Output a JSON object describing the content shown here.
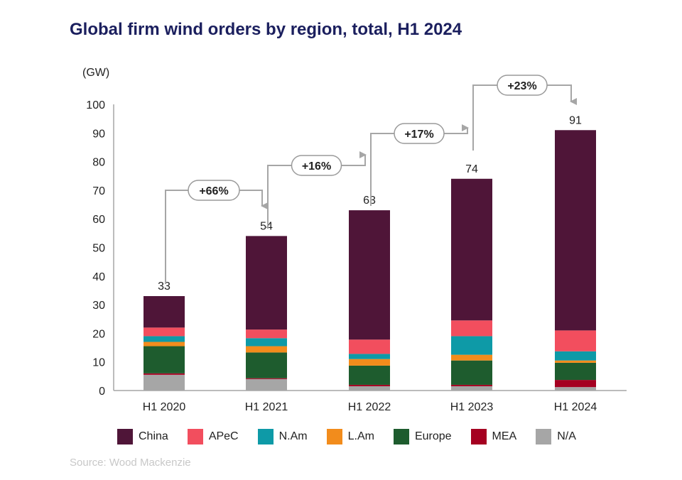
{
  "chart_data": {
    "type": "bar",
    "stacked": true,
    "title": "Global firm wind orders by region, total, H1 2024",
    "ylabel": "(GW)",
    "ylim": [
      0,
      100
    ],
    "yticks": [
      "0",
      "10",
      "20",
      "30",
      "40",
      "50",
      "60",
      "70",
      "80",
      "90",
      "100"
    ],
    "categories": [
      "H1 2020",
      "H1 2021",
      "H1 2022",
      "H1 2023",
      "H1 2024"
    ],
    "totals": [
      "33",
      "54",
      "63",
      "74",
      "91"
    ],
    "growth": [
      "+66%",
      "+16%",
      "+17%",
      "+23%"
    ],
    "series": [
      {
        "name": "N/A",
        "color": "#a6a6a6",
        "values": [
          5.5,
          4.0,
          1.5,
          1.5,
          1.2
        ]
      },
      {
        "name": "MEA",
        "color": "#a50021",
        "values": [
          0.5,
          0.3,
          0.5,
          0.5,
          2.5
        ]
      },
      {
        "name": "Europe",
        "color": "#1e5c2e",
        "values": [
          9.5,
          9.0,
          6.7,
          8.5,
          6.0
        ]
      },
      {
        "name": "L.Am",
        "color": "#f28c1c",
        "values": [
          1.5,
          2.2,
          2.3,
          2.0,
          0.8
        ]
      },
      {
        "name": "N.Am",
        "color": "#0e9aa7",
        "values": [
          2.0,
          2.8,
          1.8,
          6.5,
          3.2
        ]
      },
      {
        "name": "APeC",
        "color": "#f24e5e",
        "values": [
          3.0,
          3.0,
          5.0,
          5.5,
          7.3
        ]
      },
      {
        "name": "China",
        "color": "#4f1538",
        "values": [
          11.0,
          32.7,
          45.2,
          49.5,
          70.0
        ]
      }
    ],
    "legend_order": [
      "China",
      "APeC",
      "N.Am",
      "L.Am",
      "Europe",
      "MEA",
      "N/A"
    ],
    "legend_position": "bottom",
    "grid": false
  },
  "source": "Source: Wood Mackenzie"
}
